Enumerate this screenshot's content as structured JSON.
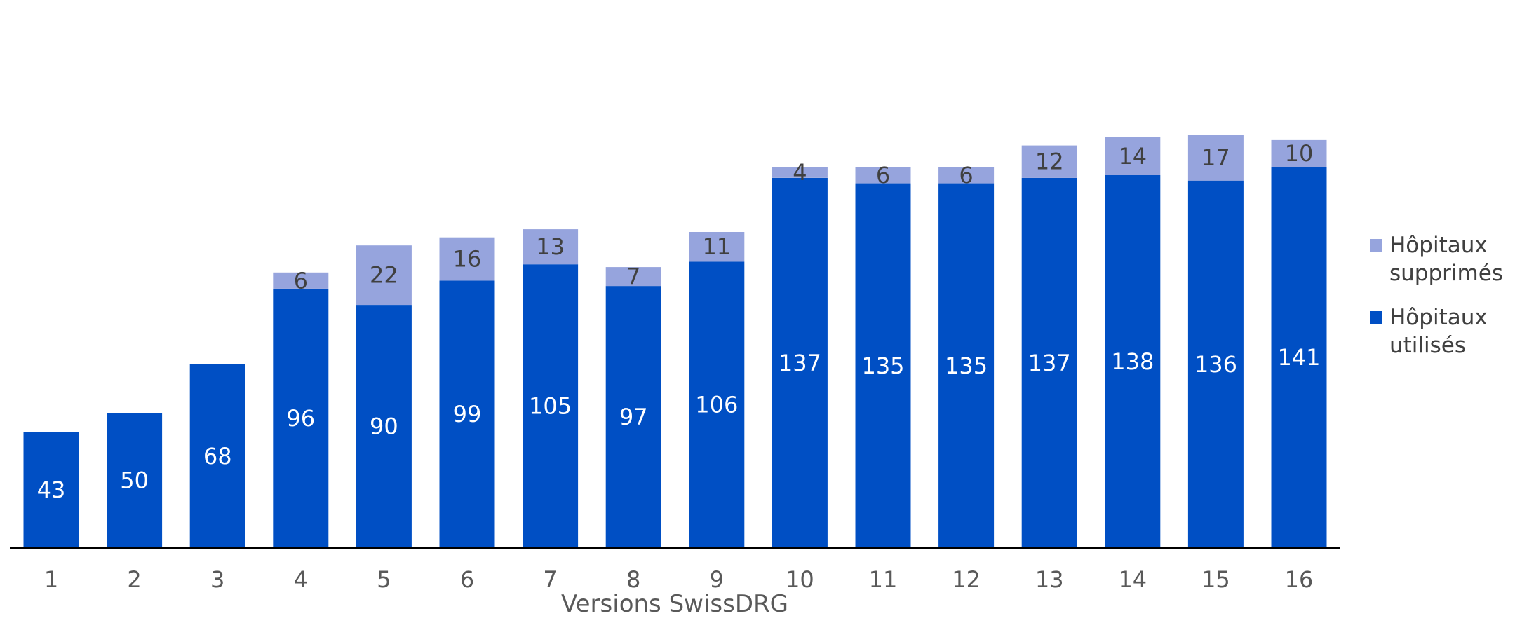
{
  "chart_data": {
    "type": "bar",
    "stacked": true,
    "xlabel": "Versions SwissDRG",
    "ylabel": "",
    "title": "",
    "ylim": [
      0,
      155
    ],
    "grid": false,
    "legend_position": "right",
    "categories": [
      "1",
      "2",
      "3",
      "4",
      "5",
      "6",
      "7",
      "8",
      "9",
      "10",
      "11",
      "12",
      "13",
      "14",
      "15",
      "16"
    ],
    "series": [
      {
        "name": "Hôpitaux utilisés",
        "color": "#004fc4",
        "label_color": "#ffffff",
        "values": [
          43,
          50,
          68,
          96,
          90,
          99,
          105,
          97,
          106,
          137,
          135,
          135,
          137,
          138,
          136,
          141
        ]
      },
      {
        "name": "Hôpitaux supprimés",
        "color": "#96a4dd",
        "label_color": "#404040",
        "values": [
          null,
          null,
          null,
          6,
          22,
          16,
          13,
          7,
          11,
          4,
          6,
          6,
          12,
          14,
          17,
          10
        ]
      }
    ]
  }
}
